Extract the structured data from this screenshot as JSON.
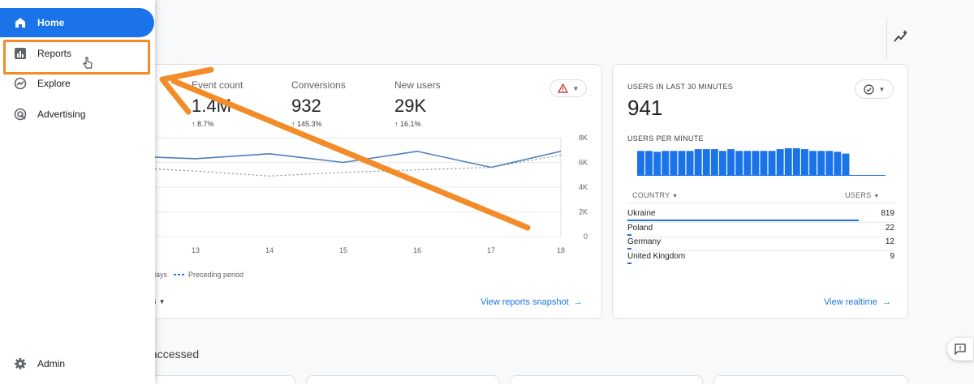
{
  "sidebar": {
    "items": [
      {
        "label": "Home",
        "icon": "home-icon"
      },
      {
        "label": "Reports",
        "icon": "bar-chart-icon"
      },
      {
        "label": "Explore",
        "icon": "explore-icon"
      },
      {
        "label": "Advertising",
        "icon": "advertising-icon"
      }
    ],
    "admin": {
      "label": "Admin",
      "icon": "gear-icon"
    },
    "active": "Home",
    "accent": "#1a73e8"
  },
  "annotation": {
    "highlight_color": "#f28c28",
    "arrow_color": "#f28c28"
  },
  "overview": {
    "metrics": [
      {
        "label": "Event count",
        "value": "1.4M",
        "change": "8.7%"
      },
      {
        "label": "Conversions",
        "value": "932",
        "change": "145.3%"
      },
      {
        "label": "New users",
        "value": "29K",
        "change": "16.1%"
      }
    ],
    "legend_current": "days",
    "legend_previous": "Preceding period",
    "dropdown_partial": "s",
    "link": "View reports snapshot"
  },
  "realtime": {
    "title": "USERS IN LAST 30 MINUTES",
    "value": "941",
    "subtitle": "USERS PER MINUTE",
    "country_header": "COUNTRY",
    "users_header": "USERS",
    "rows": [
      {
        "country": "Ukraine",
        "users": "819",
        "share": 1.0
      },
      {
        "country": "Poland",
        "users": "22",
        "share": 0.027
      },
      {
        "country": "Germany",
        "users": "12",
        "share": 0.015
      },
      {
        "country": "United Kingdom",
        "users": "9",
        "share": 0.011
      }
    ],
    "link": "View realtime",
    "per_minute": [
      27,
      27,
      27,
      27,
      26,
      27,
      27,
      27,
      27,
      27,
      27,
      27,
      27,
      27,
      29,
      29,
      29,
      29,
      29,
      27,
      27,
      27,
      29,
      29,
      27,
      27,
      27,
      27,
      27,
      27,
      27,
      27,
      27,
      29,
      29,
      29,
      30,
      30,
      30,
      29,
      29,
      27,
      27,
      27,
      27,
      27,
      27,
      26,
      26,
      26,
      24,
      24,
      0,
      0
    ]
  },
  "chart_data": {
    "type": "line",
    "x": [
      "13",
      "14",
      "15",
      "16",
      "17",
      "18"
    ],
    "series": [
      {
        "values": [
          6300,
          6700,
          6000,
          6900,
          5600,
          6900
        ],
        "style": "solid",
        "color": "#4a7fbf"
      },
      {
        "values": [
          5300,
          4900,
          5200,
          5400,
          5600,
          6600
        ],
        "style": "dotted",
        "color": "#7f8b99"
      }
    ],
    "yticks": [
      "8K",
      "6K",
      "4K",
      "2K",
      "0"
    ],
    "ylim": [
      0,
      8000
    ],
    "grid": true
  },
  "section": {
    "title": "accessed"
  }
}
